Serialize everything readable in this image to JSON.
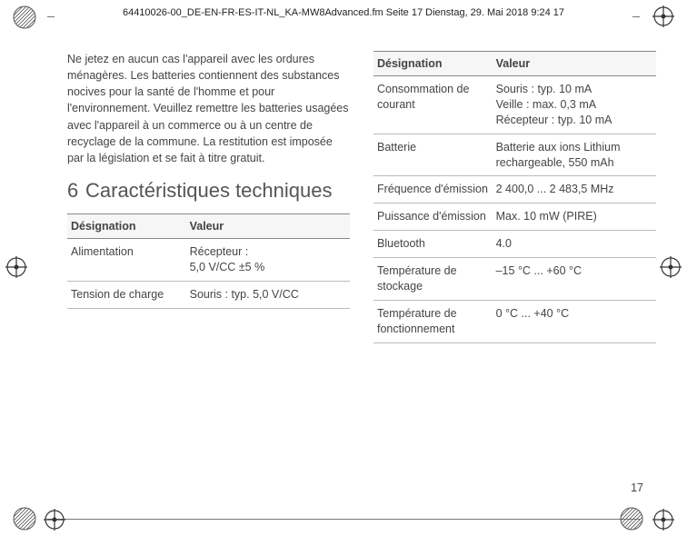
{
  "header": "64410026-00_DE-EN-FR-ES-IT-NL_KA-MW8Advanced.fm  Seite 17  Dienstag, 29. Mai 2018  9:24 17",
  "body_text": "Ne jetez en aucun cas l'appareil avec les ordures ménagères. Les batteries contiennent des substances nocives pour la santé de l'homme et pour l'environnement. Veuillez remettre les batteries usagées avec l'appareil à un commerce ou à un centre de recyclage de la commune. La restitution est imposée par la législation et se fait à titre gratuit.",
  "section_num": "6",
  "section_title": "Caractéristiques techniques",
  "th_designation": "Désignation",
  "th_valeur": "Valeur",
  "left_rows": [
    {
      "d": "Alimentation",
      "v": "Récepteur :\n5,0 V/CC ±5 %"
    },
    {
      "d": "Tension de charge",
      "v": "Souris : typ. 5,0 V/CC"
    }
  ],
  "right_rows": [
    {
      "d": "Consommation de courant",
      "v": "Souris : typ. 10 mA\nVeille : max. 0,3 mA\nRécepteur : typ. 10 mA"
    },
    {
      "d": "Batterie",
      "v": "Batterie aux ions Lithium rechargeable, 550 mAh"
    },
    {
      "d": "Fréquence d'émission",
      "v": "2 400,0 ... 2 483,5 MHz"
    },
    {
      "d": "Puissance d'émission",
      "v": "Max. 10 mW (PIRE)"
    },
    {
      "d": "Bluetooth",
      "v": "4.0"
    },
    {
      "d": "Température de stockage",
      "v": "–15 °C ... +60 °C"
    },
    {
      "d": "Température de fonctionnement",
      "v": "0 °C ... +40 °C"
    }
  ],
  "page_number": "17",
  "colors": {
    "text": "#444444",
    "rule": "#888888"
  }
}
